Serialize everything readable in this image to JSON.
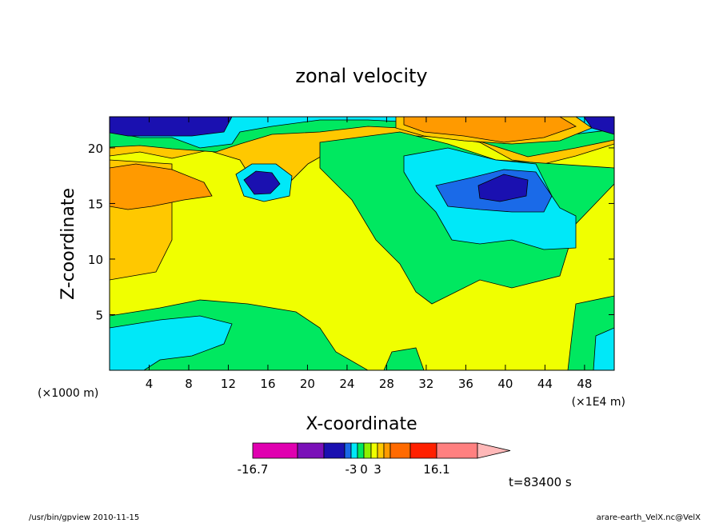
{
  "chart_data": {
    "type": "heatmap",
    "title": "zonal velocity",
    "xlabel": "X-coordinate",
    "ylabel": "Z-coordinate",
    "x_unit_label": "(×1E4 m)",
    "z_unit_label": "(×1000 m)",
    "x_ticks": [
      "4",
      "8",
      "12",
      "16",
      "20",
      "24",
      "28",
      "32",
      "36",
      "40",
      "44",
      "48"
    ],
    "x_tick_values": [
      4,
      8,
      12,
      16,
      20,
      24,
      28,
      32,
      36,
      40,
      44,
      48
    ],
    "y_ticks": [
      "5",
      "10",
      "15",
      "20"
    ],
    "y_tick_values": [
      5,
      10,
      15,
      20
    ],
    "xlim": [
      0,
      51
    ],
    "ylim": [
      0,
      22.8
    ],
    "colorbar": {
      "colors": [
        "#e000b0",
        "#7a10b8",
        "#1a10b0",
        "#1a6ae8",
        "#00e8f8",
        "#00e860",
        "#90f000",
        "#f0ff00",
        "#ffc800",
        "#ff9a00",
        "#ff6a00",
        "#ff2000",
        "#ff8080",
        "#ffb8b8"
      ],
      "boundaries": [
        -16.7,
        -12.5,
        -8,
        -5,
        -3,
        -1.5,
        0,
        1.5,
        3,
        5,
        8,
        12,
        16.1
      ],
      "labels": [
        {
          "text": "-16.7",
          "value": -16.7
        },
        {
          "text": "-3",
          "value": -3
        },
        {
          "text": "0",
          "value": 0
        },
        {
          "text": "3",
          "value": 3
        },
        {
          "text": "16.1",
          "value": 16.1
        }
      ]
    },
    "time_label": "t=83400 s",
    "footer_left": "/usr/bin/gpview   2010-11-15",
    "footer_right": "arare-earth_VelX.nc@VelX"
  }
}
